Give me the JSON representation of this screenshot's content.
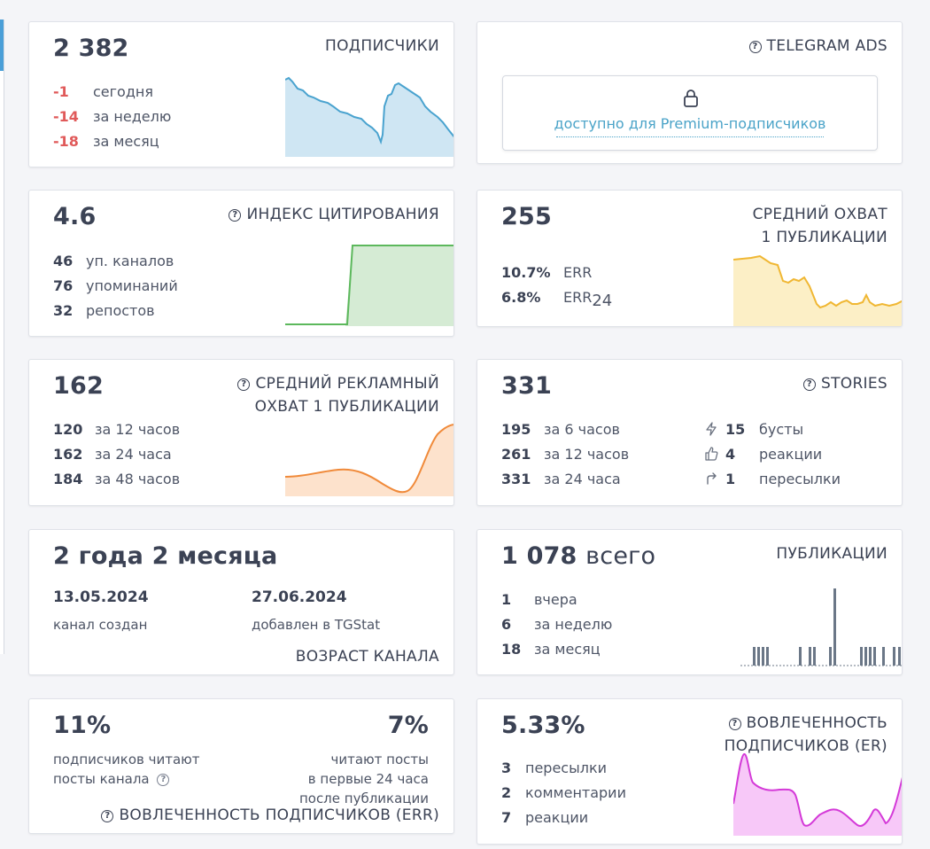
{
  "subscribers": {
    "value": "2 382",
    "title": "ПОДПИСЧИКИ",
    "rows": [
      {
        "num": "-1",
        "label": "сегодня"
      },
      {
        "num": "-14",
        "label": "за неделю"
      },
      {
        "num": "-18",
        "label": "за месяц"
      }
    ]
  },
  "telegram_ads": {
    "title": "TELEGRAM ADS",
    "premium_text": "доступно для Premium-подписчиков"
  },
  "citation": {
    "value": "4.6",
    "title": "ИНДЕКС ЦИТИРОВАНИЯ",
    "rows": [
      {
        "num": "46",
        "label": "уп. каналов"
      },
      {
        "num": "76",
        "label": "упоминаний"
      },
      {
        "num": "32",
        "label": "репостов"
      }
    ]
  },
  "avg_reach": {
    "value": "255",
    "title_line1": "СРЕДНИЙ ОХВАТ",
    "title_line2": "1 ПУБЛИКАЦИИ",
    "rows": [
      {
        "num": "10.7%",
        "label": "ERR",
        "sub": ""
      },
      {
        "num": "6.8%",
        "label": "ERR",
        "sub": "24"
      }
    ]
  },
  "ad_reach": {
    "value": "162",
    "title_line1": "СРЕДНИЙ РЕКЛАМНЫЙ",
    "title_line2": "ОХВАТ 1 ПУБЛИКАЦИИ",
    "rows": [
      {
        "num": "120",
        "label": "за 12 часов"
      },
      {
        "num": "162",
        "label": "за 24 часа"
      },
      {
        "num": "184",
        "label": "за 48 часов"
      }
    ]
  },
  "stories": {
    "value": "331",
    "title": "STORIES",
    "rows": [
      {
        "num": "195",
        "label": "за 6 часов"
      },
      {
        "num": "261",
        "label": "за 12 часов"
      },
      {
        "num": "331",
        "label": "за 24 часа"
      }
    ],
    "stats": [
      {
        "icon": "lightning-icon",
        "num": "15",
        "label": "бусты"
      },
      {
        "icon": "thumbs-up-icon",
        "num": "4",
        "label": "реакции"
      },
      {
        "icon": "share-arrow-icon",
        "num": "1",
        "label": "пересылки"
      }
    ]
  },
  "age": {
    "value": "2 года 2 месяца",
    "created_date": "13.05.2024",
    "created_label": "канал создан",
    "added_date": "27.06.2024",
    "added_label": "добавлен в TGStat",
    "title": "ВОЗРАСТ КАНАЛА"
  },
  "publications": {
    "value": "1 078",
    "value_suffix": "всего",
    "title": "ПУБЛИКАЦИИ",
    "rows": [
      {
        "num": "1",
        "label": "вчера"
      },
      {
        "num": "6",
        "label": "за неделю"
      },
      {
        "num": "18",
        "label": "за месяц"
      }
    ]
  },
  "err": {
    "left_value": "11%",
    "left_text_line1": "подписчиков читают",
    "left_text_line2": "посты канала",
    "right_value": "7%",
    "right_text_line1": "читают посты",
    "right_text_line2": "в первые 24 часа",
    "right_text_line3": "после публикации",
    "title": "ВОВЛЕЧЕННОСТЬ ПОДПИСЧИКОВ (ERR)"
  },
  "er": {
    "value": "5.33%",
    "title_line1": "ВОВЛЕЧЕННОСТЬ",
    "title_line2": "ПОДПИСЧИКОВ (ER)",
    "rows": [
      {
        "num": "3",
        "label": "пересылки"
      },
      {
        "num": "2",
        "label": "комментарии"
      },
      {
        "num": "7",
        "label": "реакции"
      }
    ]
  },
  "colors": {
    "negative": "#e05a5a",
    "link": "#4aa3c8",
    "subscribers_line": "#4aa3cf",
    "citation_line": "#5cb85c",
    "reach_line": "#f0b733",
    "ad_reach_line": "#f08a3a",
    "publications_bar": "#6b7787",
    "er_line": "#d43ad8"
  }
}
